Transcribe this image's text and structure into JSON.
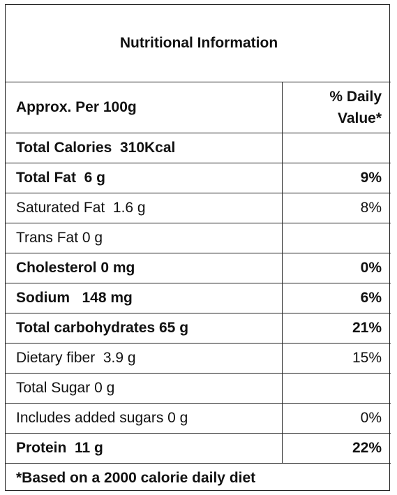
{
  "title": "Nutritional Information",
  "header": {
    "serving": "Approx. Per 100g",
    "daily_value_line1": "% Daily",
    "daily_value_line2": "Value*"
  },
  "rows": [
    {
      "label": "Total Calories  310Kcal",
      "dv": "",
      "bold": true
    },
    {
      "label": "Total Fat  6 g",
      "dv": "9%",
      "bold": true
    },
    {
      "label": "Saturated Fat  1.6 g",
      "dv": "8%",
      "bold": false
    },
    {
      "label": "Trans Fat 0 g",
      "dv": "",
      "bold": false
    },
    {
      "label": "Cholesterol 0 mg",
      "dv": "0%",
      "bold": true
    },
    {
      "label": "Sodium   148 mg",
      "dv": "6%",
      "bold": true
    },
    {
      "label": "Total carbohydrates 65 g",
      "dv": "21%",
      "bold": true
    },
    {
      "label": "Dietary fiber  3.9 g",
      "dv": "15%",
      "bold": false
    },
    {
      "label": "Total Sugar 0 g",
      "dv": "",
      "bold": false
    },
    {
      "label": "Includes added sugars 0 g",
      "dv": "0%",
      "bold": false
    },
    {
      "label": "Protein  11 g",
      "dv": "22%",
      "bold": true
    }
  ],
  "footnote": "*Based on a 2000 calorie daily diet"
}
